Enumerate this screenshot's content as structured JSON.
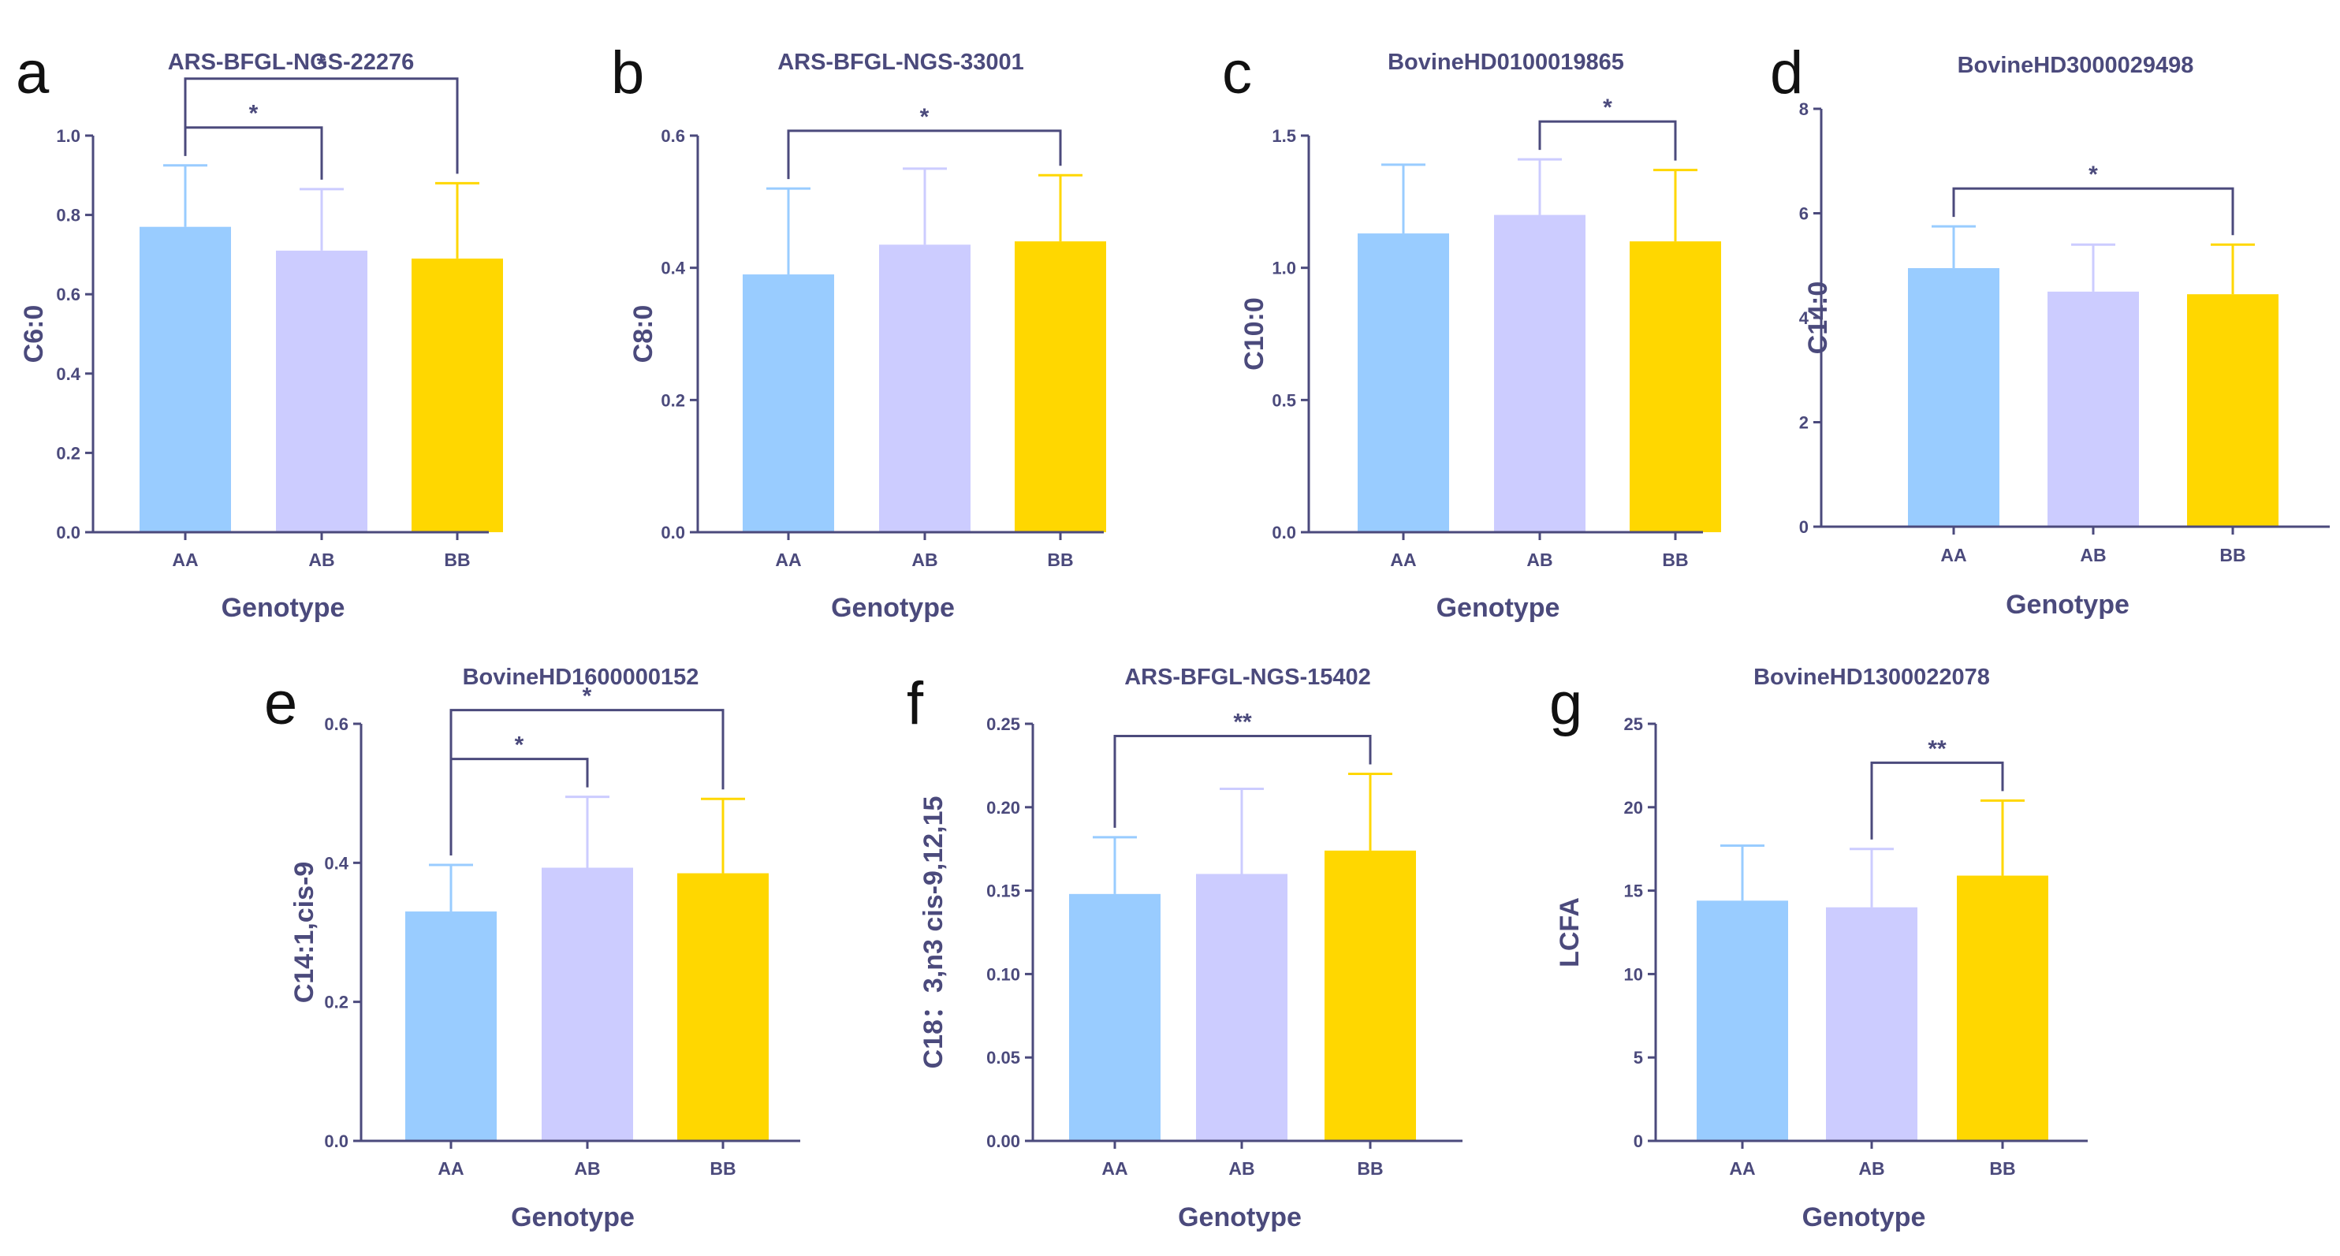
{
  "series_colors": {
    "AA": "#99ccff",
    "AB": "#ccccff",
    "BB": "#ffd700"
  },
  "chart_data": [
    {
      "panel": "a",
      "type": "bar",
      "title": "ARS-BFGL-NGS-22276",
      "xlabel": "Genotype",
      "ylabel": "C6:0",
      "categories": [
        "AA",
        "AB",
        "BB"
      ],
      "values": [
        0.77,
        0.71,
        0.69
      ],
      "errors": [
        0.155,
        0.155,
        0.19
      ],
      "ylim": [
        0,
        1.0
      ],
      "yticks": [
        "0.0",
        "0.2",
        "0.4",
        "0.6",
        "0.8",
        "1.0"
      ],
      "brackets": [
        {
          "from": 0,
          "to": 1,
          "label": "*",
          "level": 0
        },
        {
          "from": 0,
          "to": 2,
          "label": "*",
          "level": 1
        }
      ]
    },
    {
      "panel": "b",
      "type": "bar",
      "title": "ARS-BFGL-NGS-33001",
      "xlabel": "Genotype",
      "ylabel": "C8:0",
      "categories": [
        "AA",
        "AB",
        "BB"
      ],
      "values": [
        0.39,
        0.435,
        0.44
      ],
      "errors": [
        0.13,
        0.115,
        0.1
      ],
      "ylim": [
        0,
        0.6
      ],
      "yticks": [
        "0.0",
        "0.2",
        "0.4",
        "0.6"
      ],
      "brackets": [
        {
          "from": 0,
          "to": 2,
          "label": "*",
          "level": 0
        }
      ]
    },
    {
      "panel": "c",
      "type": "bar",
      "title": "BovineHD0100019865",
      "xlabel": "Genotype",
      "ylabel": "C10:0",
      "categories": [
        "AA",
        "AB",
        "BB"
      ],
      "values": [
        1.13,
        1.2,
        1.1
      ],
      "errors": [
        0.26,
        0.21,
        0.27
      ],
      "ylim": [
        0,
        1.5
      ],
      "yticks": [
        "0.0",
        "0.5",
        "1.0",
        "1.5"
      ],
      "brackets": [
        {
          "from": 1,
          "to": 2,
          "label": "*",
          "level": 0
        }
      ]
    },
    {
      "panel": "d",
      "type": "bar",
      "title": "BovineHD3000029498",
      "xlabel": "Genotype",
      "ylabel": "C14:0",
      "categories": [
        "AA",
        "AB",
        "BB"
      ],
      "values": [
        4.95,
        4.5,
        4.45
      ],
      "errors": [
        0.8,
        0.9,
        0.95
      ],
      "ylim": [
        0,
        8
      ],
      "yticks": [
        "0",
        "2",
        "4",
        "6",
        "8"
      ],
      "brackets": [
        {
          "from": 0,
          "to": 2,
          "label": "*",
          "level": 0
        }
      ]
    },
    {
      "panel": "e",
      "type": "bar",
      "title": "BovineHD1600000152",
      "xlabel": "Genotype",
      "ylabel": "C14:1,cis-9",
      "categories": [
        "AA",
        "AB",
        "BB"
      ],
      "values": [
        0.33,
        0.393,
        0.385
      ],
      "errors": [
        0.067,
        0.102,
        0.107
      ],
      "ylim": [
        0,
        0.6
      ],
      "yticks": [
        "0.0",
        "0.2",
        "0.4",
        "0.6"
      ],
      "brackets": [
        {
          "from": 0,
          "to": 1,
          "label": "*",
          "level": 0
        },
        {
          "from": 0,
          "to": 2,
          "label": "*",
          "level": 1
        }
      ]
    },
    {
      "panel": "f",
      "type": "bar",
      "title": "ARS-BFGL-NGS-15402",
      "xlabel": "Genotype",
      "ylabel": "C18：3,n3 cis-9,12,15",
      "categories": [
        "AA",
        "AB",
        "BB"
      ],
      "values": [
        0.148,
        0.16,
        0.174
      ],
      "errors": [
        0.034,
        0.051,
        0.046
      ],
      "ylim": [
        0,
        0.25
      ],
      "yticks": [
        "0.00",
        "0.05",
        "0.10",
        "0.15",
        "0.20",
        "0.25"
      ],
      "brackets": [
        {
          "from": 0,
          "to": 2,
          "label": "**",
          "level": 0
        }
      ]
    },
    {
      "panel": "g",
      "type": "bar",
      "title": "BovineHD1300022078",
      "xlabel": "Genotype",
      "ylabel": "LCFA",
      "categories": [
        "AA",
        "AB",
        "BB"
      ],
      "values": [
        14.4,
        14.0,
        15.9
      ],
      "errors": [
        3.3,
        3.5,
        4.5
      ],
      "ylim": [
        0,
        25
      ],
      "yticks": [
        "0",
        "5",
        "10",
        "15",
        "20",
        "25"
      ],
      "brackets": [
        {
          "from": 1,
          "to": 2,
          "label": "**",
          "level": 0
        }
      ]
    }
  ]
}
